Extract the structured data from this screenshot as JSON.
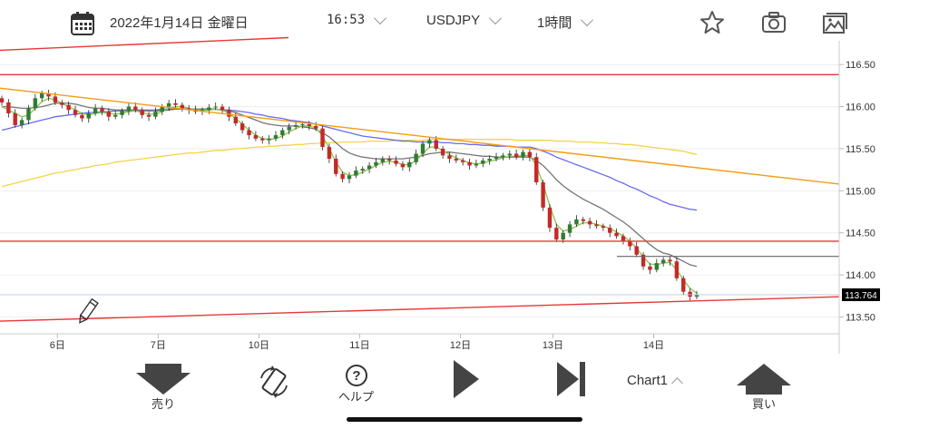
{
  "header": {
    "date": "2022年1月14日 金曜日",
    "time": "16:53",
    "symbol": "USDJPY",
    "timeframe": "1時間"
  },
  "colors": {
    "bull": "#2e7d32",
    "bear": "#c62828",
    "ma_short": "#8bc34a",
    "ma_mid": "#757575",
    "ma_long": "#6a6af0",
    "ma_longest": "#f6d24a",
    "trend_orange": "#f39c12",
    "hline_red": "#e53935"
  },
  "chart_data": {
    "type": "candlestick",
    "y_axis": {
      "min": 113.3,
      "max": 116.75,
      "ticks": [
        "116.50",
        "116.00",
        "115.50",
        "115.00",
        "114.50",
        "114.00",
        "113.50"
      ]
    },
    "x_axis": {
      "ticks": [
        "6日",
        "7日",
        "10日",
        "11日",
        "12日",
        "13日",
        "14日"
      ]
    },
    "current_price": "113.764",
    "horizontal_lines": [
      116.38,
      114.4
    ],
    "close_series": [
      116.05,
      115.92,
      115.78,
      115.84,
      115.98,
      116.1,
      116.16,
      116.12,
      116.05,
      116.02,
      115.96,
      115.9,
      115.86,
      115.92,
      115.98,
      115.94,
      115.88,
      115.9,
      115.95,
      116.0,
      115.96,
      115.9,
      115.88,
      115.94,
      116.0,
      116.04,
      116.02,
      115.98,
      115.96,
      115.94,
      115.96,
      115.99,
      116.0,
      115.96,
      115.88,
      115.8,
      115.72,
      115.66,
      115.62,
      115.6,
      115.62,
      115.66,
      115.72,
      115.76,
      115.78,
      115.79,
      115.77,
      115.74,
      115.52,
      115.38,
      115.2,
      115.14,
      115.18,
      115.24,
      115.26,
      115.3,
      115.34,
      115.38,
      115.36,
      115.32,
      115.28,
      115.34,
      115.44,
      115.56,
      115.6,
      115.5,
      115.42,
      115.38,
      115.36,
      115.34,
      115.3,
      115.32,
      115.36,
      115.38,
      115.4,
      115.42,
      115.44,
      115.4,
      115.46,
      115.4,
      115.1,
      114.8,
      114.56,
      114.42,
      114.5,
      114.6,
      114.66,
      114.64,
      114.6,
      114.58,
      114.56,
      114.5,
      114.46,
      114.4,
      114.34,
      114.24,
      114.1,
      114.06,
      114.14,
      114.18,
      114.16,
      113.96,
      113.8,
      113.74,
      113.76
    ],
    "ma_short": [
      116.0,
      115.96,
      115.92,
      115.88,
      115.9,
      115.98,
      116.06,
      116.1,
      116.08,
      116.04,
      116.0,
      115.96,
      115.92,
      115.9,
      115.92,
      115.93,
      115.92,
      115.91,
      115.92,
      115.94,
      115.95,
      115.93,
      115.91,
      115.91,
      115.94,
      115.98,
      116.0,
      116.0,
      115.98,
      115.96,
      115.96,
      115.96,
      115.97,
      115.96,
      115.92,
      115.86,
      115.79,
      115.72,
      115.66,
      115.62,
      115.61,
      115.62,
      115.65,
      115.7,
      115.74,
      115.77,
      115.77,
      115.75,
      115.65,
      115.5,
      115.34,
      115.22,
      115.18,
      115.19,
      115.22,
      115.26,
      115.3,
      115.34,
      115.35,
      115.34,
      115.31,
      115.31,
      115.36,
      115.44,
      115.52,
      115.52,
      115.48,
      115.43,
      115.39,
      115.36,
      115.33,
      115.32,
      115.33,
      115.35,
      115.37,
      115.39,
      115.41,
      115.41,
      115.42,
      115.42,
      115.3,
      115.08,
      114.82,
      114.6,
      114.52,
      114.54,
      114.58,
      114.62,
      114.62,
      114.6,
      114.58,
      114.55,
      114.51,
      114.46,
      114.4,
      114.32,
      114.21,
      114.13,
      114.12,
      114.14,
      114.15,
      114.06,
      113.94,
      113.84,
      113.78
    ],
    "ma_mid": [
      116.0,
      116.0,
      115.99,
      115.98,
      115.98,
      115.99,
      116.0,
      116.02,
      116.04,
      116.04,
      116.04,
      116.03,
      116.01,
      115.99,
      115.98,
      115.98,
      115.97,
      115.96,
      115.96,
      115.96,
      115.96,
      115.95,
      115.95,
      115.95,
      115.95,
      115.96,
      115.97,
      115.97,
      115.97,
      115.97,
      115.97,
      115.97,
      115.97,
      115.96,
      115.95,
      115.93,
      115.9,
      115.87,
      115.84,
      115.81,
      115.79,
      115.78,
      115.77,
      115.77,
      115.77,
      115.76,
      115.75,
      115.73,
      115.69,
      115.64,
      115.57,
      115.5,
      115.45,
      115.42,
      115.4,
      115.39,
      115.38,
      115.38,
      115.38,
      115.38,
      115.38,
      115.39,
      115.4,
      115.42,
      115.44,
      115.45,
      115.46,
      115.46,
      115.45,
      115.44,
      115.43,
      115.42,
      115.41,
      115.41,
      115.4,
      115.4,
      115.4,
      115.4,
      115.4,
      115.4,
      115.36,
      115.3,
      115.22,
      115.13,
      115.06,
      115.0,
      114.95,
      114.9,
      114.86,
      114.82,
      114.78,
      114.73,
      114.68,
      114.63,
      114.57,
      114.5,
      114.43,
      114.36,
      114.3,
      114.26,
      114.24,
      114.2,
      114.16,
      114.12,
      114.1
    ],
    "ma_long": [
      115.72,
      115.74,
      115.76,
      115.78,
      115.8,
      115.82,
      115.84,
      115.86,
      115.88,
      115.89,
      115.9,
      115.91,
      115.92,
      115.93,
      115.93,
      115.94,
      115.94,
      115.95,
      115.95,
      115.95,
      115.96,
      115.96,
      115.96,
      115.96,
      115.97,
      115.97,
      115.97,
      115.97,
      115.97,
      115.97,
      115.97,
      115.97,
      115.97,
      115.96,
      115.96,
      115.95,
      115.94,
      115.93,
      115.91,
      115.9,
      115.88,
      115.87,
      115.86,
      115.84,
      115.83,
      115.82,
      115.81,
      115.79,
      115.77,
      115.75,
      115.73,
      115.71,
      115.69,
      115.67,
      115.65,
      115.64,
      115.63,
      115.62,
      115.61,
      115.6,
      115.59,
      115.59,
      115.58,
      115.58,
      115.58,
      115.58,
      115.57,
      115.57,
      115.56,
      115.56,
      115.55,
      115.55,
      115.54,
      115.54,
      115.53,
      115.53,
      115.53,
      115.52,
      115.52,
      115.52,
      115.5,
      115.47,
      115.44,
      115.4,
      115.37,
      115.34,
      115.31,
      115.28,
      115.25,
      115.22,
      115.19,
      115.16,
      115.12,
      115.09,
      115.05,
      115.02,
      114.98,
      114.94,
      114.91,
      114.87,
      114.84,
      114.82,
      114.8,
      114.78,
      114.77
    ],
    "ma_longest": [
      115.05,
      115.07,
      115.09,
      115.11,
      115.13,
      115.15,
      115.17,
      115.19,
      115.21,
      115.22,
      115.24,
      115.25,
      115.27,
      115.28,
      115.3,
      115.31,
      115.32,
      115.34,
      115.35,
      115.36,
      115.37,
      115.38,
      115.39,
      115.4,
      115.41,
      115.42,
      115.43,
      115.44,
      115.45,
      115.45,
      115.46,
      115.47,
      115.48,
      115.48,
      115.49,
      115.5,
      115.5,
      115.51,
      115.52,
      115.52,
      115.53,
      115.53,
      115.54,
      115.54,
      115.55,
      115.55,
      115.56,
      115.56,
      115.57,
      115.57,
      115.57,
      115.58,
      115.58,
      115.58,
      115.58,
      115.59,
      115.59,
      115.59,
      115.59,
      115.6,
      115.6,
      115.6,
      115.6,
      115.6,
      115.61,
      115.61,
      115.61,
      115.61,
      115.61,
      115.61,
      115.61,
      115.61,
      115.61,
      115.61,
      115.61,
      115.61,
      115.61,
      115.6,
      115.6,
      115.6,
      115.6,
      115.6,
      115.6,
      115.59,
      115.59,
      115.59,
      115.58,
      115.58,
      115.58,
      115.57,
      115.57,
      115.56,
      115.56,
      115.55,
      115.55,
      115.54,
      115.53,
      115.52,
      115.51,
      115.5,
      115.49,
      115.48,
      115.47,
      115.45,
      115.43
    ]
  },
  "footer": {
    "sell_label": "売り",
    "help_label": "ヘルプ",
    "chart_label": "Chart1",
    "buy_label": "買い"
  }
}
